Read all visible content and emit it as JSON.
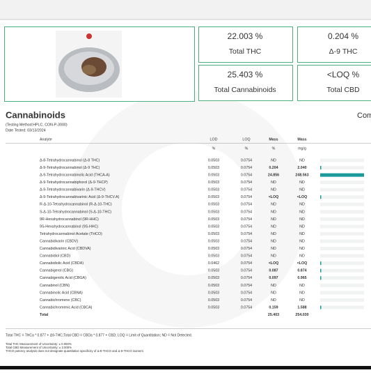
{
  "summary": {
    "cards": [
      {
        "value": "22.003 %",
        "label": "Total THC"
      },
      {
        "value": "0.204 %",
        "label": "Δ-9 THC"
      },
      {
        "value": "25.403 %",
        "label": "Total Cannabinoids"
      },
      {
        "value": "<LOQ %",
        "label": "Total CBD"
      }
    ]
  },
  "section": {
    "title": "Cannabinoids",
    "next_title": "Com",
    "method": "(Testing Method:HPLC, CON-P-3000)",
    "date": "Date Tested: 03/13/2024"
  },
  "table": {
    "header": [
      "Analyte",
      "LOD",
      "LOQ",
      "Mass",
      "Mass"
    ],
    "units": [
      "%",
      "%",
      "%",
      "mg/g"
    ],
    "rows": [
      [
        "Δ-8-Tetrahydrocannabinol (Δ-8 THC)",
        "0.0503",
        "0.0754",
        "ND",
        "ND"
      ],
      [
        "Δ-9-Tetrahydrocannabinol (Δ-9 THC)",
        "0.0503",
        "0.0754",
        "0.204",
        "2.040"
      ],
      [
        "Δ-9-Tetrahydrocannabinolic Acid (THCA-A)",
        "0.0503",
        "0.0754",
        "24.856",
        "248.563"
      ],
      [
        "Δ-9-Tetrahydrocannabiphorol (Δ-9-THCP)",
        "0.0503",
        "0.0754",
        "ND",
        "ND"
      ],
      [
        "Δ-9-Tetrahydrocannabivarin (Δ-9-THCV)",
        "0.0503",
        "0.0754",
        "ND",
        "ND"
      ],
      [
        "Δ-9-Tetrahydrocannabivarinic Acid (Δ-9-THCV.A)",
        "0.0503",
        "0.0754",
        "<LOQ",
        "<LOQ"
      ],
      [
        "R-Δ-10-Tetrahydrocannabinol (R-Δ-10-THC)",
        "0.0503",
        "0.0754",
        "ND",
        "ND"
      ],
      [
        "S-Δ-10-Tetrahydrocannabinol (S-Δ-10-THC)",
        "0.0503",
        "0.0754",
        "ND",
        "ND"
      ],
      [
        "9R-Hexahydrocannabinol (9R-HHC)",
        "0.0503",
        "0.0754",
        "ND",
        "ND"
      ],
      [
        "9S-Hexahydrocannabinol (9S-HHC)",
        "0.0503",
        "0.0754",
        "ND",
        "ND"
      ],
      [
        "Tetrahydrocannabinol Acetate (THCO)",
        "0.0503",
        "0.0754",
        "ND",
        "ND"
      ],
      [
        "Cannabidivarin (CBDV)",
        "0.0503",
        "0.0754",
        "ND",
        "ND"
      ],
      [
        "Cannabidivarinic Acid (CBDVA)",
        "0.0503",
        "0.0754",
        "ND",
        "ND"
      ],
      [
        "Cannabidiol (CBD)",
        "0.0503",
        "0.0754",
        "ND",
        "ND"
      ],
      [
        "Cannabidiolic Acid (CBDA)",
        "0.0462",
        "0.0754",
        "<LOQ",
        "<LOQ"
      ],
      [
        "Cannabigerol (CBG)",
        "0.0503",
        "0.0754",
        "0.087",
        "0.874"
      ],
      [
        "Cannabigerolic Acid (CBGA)",
        "0.0503",
        "0.0754",
        "0.097",
        "0.965"
      ],
      [
        "Cannabinol (CBN)",
        "0.0503",
        "0.0754",
        "ND",
        "ND"
      ],
      [
        "Cannabinolic Acid (CBNA)",
        "0.0503",
        "0.0754",
        "ND",
        "ND"
      ],
      [
        "Cannabichromene (CBC)",
        "0.0503",
        "0.0754",
        "ND",
        "ND"
      ],
      [
        "Cannabichromenic Acid (CBCA)",
        "0.0503",
        "0.0754",
        "0.159",
        "1.588"
      ]
    ],
    "total": {
      "label": "Total",
      "mass_pct": "25.403",
      "mass_mgg": "254.030"
    }
  },
  "notes": [
    "Total THC = THCa * 0.877 + Δ9-THC;Total CBD = CBDa * 0.877 + CBD; LOQ = Limit of Quantitation; ND = Not Detected.",
    "Total THC Measurement of Uncertainty: ± 0.050%",
    "Total CBD Measurement of Uncertainty: ± 2.000%",
    "THCO potency analysis does not designate quantitative specificity of Δ-8-THCO and Δ-9-THCO isomers"
  ]
}
